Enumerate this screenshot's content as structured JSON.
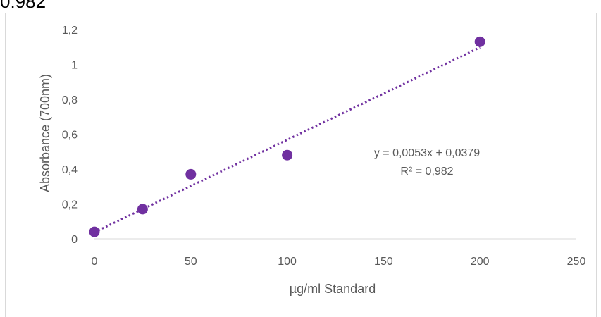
{
  "top_fragment": "0.982",
  "chart_data": {
    "type": "scatter",
    "title": "",
    "xlabel": "µg/ml Standard",
    "ylabel": "Absorbance (700nm)",
    "xlim": [
      0,
      250
    ],
    "ylim": [
      0,
      1.2
    ],
    "x_ticks": [
      0,
      50,
      100,
      150,
      200,
      250
    ],
    "y_ticks": [
      0,
      0.2,
      0.4,
      0.6,
      0.8,
      1,
      1.2
    ],
    "x_tick_labels": [
      "0",
      "50",
      "100",
      "150",
      "200",
      "250"
    ],
    "y_tick_labels": [
      "0",
      "0,2",
      "0,4",
      "0,6",
      "0,8",
      "1",
      "1,2"
    ],
    "grid": false,
    "legend": "none",
    "series": [
      {
        "x": [
          0,
          25,
          50,
          100,
          200
        ],
        "y": [
          0.04,
          0.17,
          0.37,
          0.48,
          1.13
        ],
        "color": "#7030a0"
      }
    ],
    "trendline": {
      "type": "linear",
      "slope": 0.0053,
      "intercept": 0.0379,
      "color": "#7030a0",
      "style": "dotted"
    },
    "annotations": [
      "y = 0,0053x + 0,0379",
      "R² = 0,982"
    ]
  }
}
